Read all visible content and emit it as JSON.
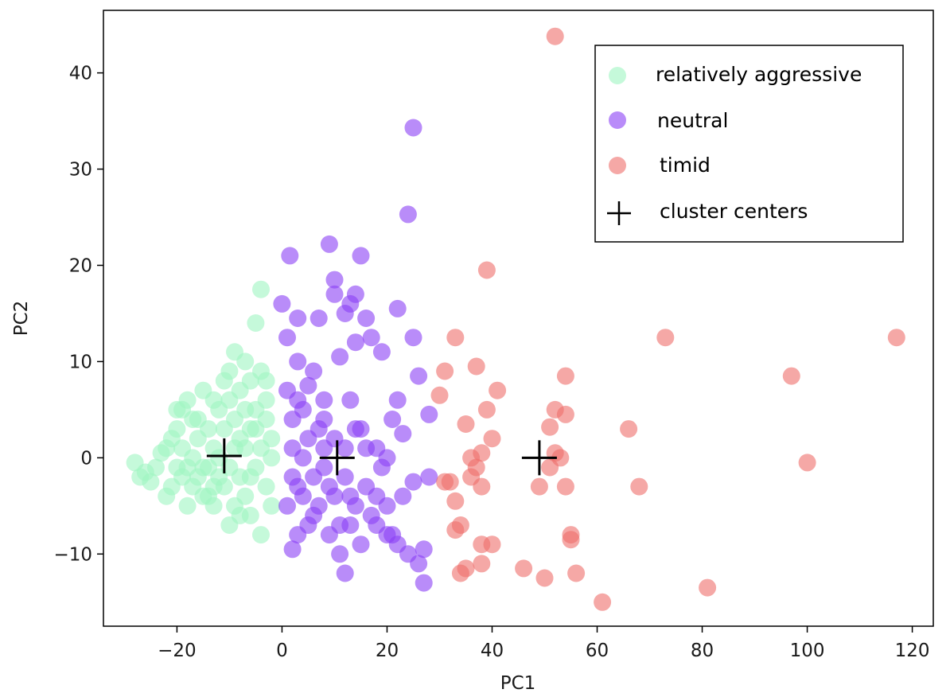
{
  "chart_data": {
    "type": "scatter",
    "title": "",
    "xlabel": "PC1",
    "ylabel": "PC2",
    "xlim": [
      -34,
      124
    ],
    "ylim": [
      -17.5,
      46.5
    ],
    "xticks": [
      -20,
      0,
      20,
      40,
      60,
      80,
      100,
      120
    ],
    "yticks": [
      -10,
      0,
      10,
      20,
      30,
      40
    ],
    "xtick_labels": [
      "−20",
      "0",
      "20",
      "40",
      "60",
      "80",
      "100",
      "120"
    ],
    "ytick_labels": [
      "−10",
      "0",
      "10",
      "20",
      "30",
      "40"
    ],
    "grid": false,
    "legend_position": "top-right",
    "series": [
      {
        "name": "relatively aggressive",
        "color": "#9ef5c1",
        "points": [
          [
            -28,
            -0.5
          ],
          [
            -27,
            -2
          ],
          [
            -26,
            -1.5
          ],
          [
            -25,
            -2.5
          ],
          [
            -24,
            -1
          ],
          [
            -23,
            0.5
          ],
          [
            -22,
            -4
          ],
          [
            -22,
            1
          ],
          [
            -21,
            -3
          ],
          [
            -21,
            2
          ],
          [
            -20,
            -1
          ],
          [
            -20,
            3
          ],
          [
            -19,
            5
          ],
          [
            -19,
            -2
          ],
          [
            -18,
            -5
          ],
          [
            -18,
            6
          ],
          [
            -17,
            0
          ],
          [
            -17,
            -3
          ],
          [
            -16,
            2
          ],
          [
            -16,
            4
          ],
          [
            -15,
            -1
          ],
          [
            -15,
            7
          ],
          [
            -14,
            -4
          ],
          [
            -14,
            3
          ],
          [
            -13,
            -5
          ],
          [
            -13,
            1
          ],
          [
            -12,
            5
          ],
          [
            -12,
            -2
          ],
          [
            -11,
            8
          ],
          [
            -11,
            -3
          ],
          [
            -10,
            9
          ],
          [
            -10,
            -7
          ],
          [
            -9,
            4
          ],
          [
            -9,
            -5
          ],
          [
            -9,
            11
          ],
          [
            -8,
            2
          ],
          [
            -8,
            -2
          ],
          [
            -8,
            7
          ],
          [
            -7,
            10
          ],
          [
            -7,
            -4
          ],
          [
            -6,
            3
          ],
          [
            -6,
            -6
          ],
          [
            -6,
            8
          ],
          [
            -5,
            5
          ],
          [
            -5,
            -1
          ],
          [
            -5,
            14
          ],
          [
            -4,
            1
          ],
          [
            -4,
            -8
          ],
          [
            -4,
            9
          ],
          [
            -4,
            17.5
          ],
          [
            -3,
            4
          ],
          [
            -3,
            -3
          ],
          [
            -3,
            6
          ],
          [
            -2,
            2
          ],
          [
            -2,
            -5
          ],
          [
            -2,
            0
          ],
          [
            -10,
            6
          ],
          [
            -12,
            0
          ],
          [
            -14,
            -1
          ],
          [
            -15,
            -4
          ],
          [
            -7,
            1
          ],
          [
            -8,
            -6
          ],
          [
            -11,
            3
          ],
          [
            -13,
            6
          ],
          [
            -17,
            4
          ],
          [
            -19,
            1
          ],
          [
            -20,
            5
          ],
          [
            -9,
            1
          ],
          [
            -6,
            -2
          ],
          [
            -5,
            3
          ],
          [
            -10,
            -1
          ],
          [
            -13,
            -3
          ],
          [
            -16,
            -2
          ],
          [
            -7,
            5
          ],
          [
            -3,
            8
          ],
          [
            -18,
            -1
          ]
        ]
      },
      {
        "name": "neutral",
        "color": "#8a40f5",
        "points": [
          [
            0,
            16
          ],
          [
            1,
            12.5
          ],
          [
            1,
            7
          ],
          [
            1.5,
            21
          ],
          [
            2,
            -9.5
          ],
          [
            2,
            4
          ],
          [
            3,
            -8
          ],
          [
            3,
            10
          ],
          [
            3,
            14.5
          ],
          [
            3,
            -3
          ],
          [
            4,
            0
          ],
          [
            4,
            5
          ],
          [
            5,
            -7
          ],
          [
            5,
            2
          ],
          [
            5,
            7.5
          ],
          [
            6,
            -2
          ],
          [
            6,
            9
          ],
          [
            7,
            -5
          ],
          [
            7,
            3
          ],
          [
            7,
            14.5
          ],
          [
            8,
            -1
          ],
          [
            8,
            1
          ],
          [
            8,
            6
          ],
          [
            9,
            22.2
          ],
          [
            9,
            -3
          ],
          [
            9,
            -8
          ],
          [
            10,
            2
          ],
          [
            10,
            17
          ],
          [
            10,
            18.5
          ],
          [
            11,
            -7
          ],
          [
            11,
            -10
          ],
          [
            11,
            10.5
          ],
          [
            12,
            1
          ],
          [
            12,
            15
          ],
          [
            12,
            -12
          ],
          [
            13,
            -4
          ],
          [
            13,
            16
          ],
          [
            13,
            6
          ],
          [
            14,
            17
          ],
          [
            14,
            12
          ],
          [
            14,
            -5
          ],
          [
            15,
            -9
          ],
          [
            15,
            21
          ],
          [
            15,
            3
          ],
          [
            16,
            14.5
          ],
          [
            16,
            -3
          ],
          [
            17,
            12.5
          ],
          [
            17,
            -6
          ],
          [
            18,
            -7
          ],
          [
            18,
            1
          ],
          [
            19,
            -1
          ],
          [
            19,
            11
          ],
          [
            20,
            -5
          ],
          [
            20,
            0
          ],
          [
            21,
            -8
          ],
          [
            21,
            4
          ],
          [
            22,
            15.5
          ],
          [
            22,
            -9
          ],
          [
            23,
            2.5
          ],
          [
            23,
            -4
          ],
          [
            24,
            -10
          ],
          [
            24,
            25.3
          ],
          [
            25,
            34.3
          ],
          [
            25,
            12.5
          ],
          [
            25,
            -2.5
          ],
          [
            26,
            8.5
          ],
          [
            26,
            -11
          ],
          [
            27,
            -13
          ],
          [
            27,
            -9.5
          ],
          [
            28,
            4.5
          ],
          [
            28,
            -2
          ],
          [
            1,
            -5
          ],
          [
            2,
            -2
          ],
          [
            4,
            -4
          ],
          [
            6,
            -6
          ],
          [
            8,
            4
          ],
          [
            10,
            -4
          ],
          [
            12,
            -2
          ],
          [
            13,
            -7
          ],
          [
            14,
            3
          ],
          [
            16,
            1
          ],
          [
            18,
            -4
          ],
          [
            20,
            -8
          ],
          [
            22,
            6
          ],
          [
            2,
            1
          ],
          [
            3,
            6
          ]
        ]
      },
      {
        "name": "timid",
        "color": "#ef6e6a",
        "points": [
          [
            30,
            6.5
          ],
          [
            31,
            9
          ],
          [
            31,
            -2.5
          ],
          [
            32,
            -2.5
          ],
          [
            33,
            -4.5
          ],
          [
            33,
            -7.5
          ],
          [
            33,
            12.5
          ],
          [
            34,
            -12
          ],
          [
            34,
            -7
          ],
          [
            35,
            3.5
          ],
          [
            35,
            -11.5
          ],
          [
            36,
            0
          ],
          [
            36,
            -2
          ],
          [
            37,
            9.5
          ],
          [
            37,
            -1
          ],
          [
            38,
            -3
          ],
          [
            38,
            0.5
          ],
          [
            38,
            -9
          ],
          [
            38,
            -11
          ],
          [
            39,
            19.5
          ],
          [
            39,
            5
          ],
          [
            40,
            2
          ],
          [
            40,
            -9
          ],
          [
            41,
            7
          ],
          [
            46,
            -11.5
          ],
          [
            49,
            -3
          ],
          [
            50,
            -12.5
          ],
          [
            51,
            3.2
          ],
          [
            51,
            -1
          ],
          [
            52,
            5
          ],
          [
            52,
            0.5
          ],
          [
            53,
            0
          ],
          [
            54,
            8.5
          ],
          [
            54,
            4.5
          ],
          [
            54,
            -3
          ],
          [
            55,
            -8.5
          ],
          [
            55,
            -8
          ],
          [
            56,
            -12
          ],
          [
            61,
            -15
          ],
          [
            66,
            3
          ],
          [
            68,
            -3
          ],
          [
            73,
            12.5
          ],
          [
            81,
            -13.5
          ],
          [
            97,
            8.5
          ],
          [
            100,
            -0.5
          ],
          [
            117,
            12.5
          ],
          [
            52,
            43.8
          ]
        ]
      }
    ],
    "centers": {
      "name": "cluster centers",
      "color": "#000000",
      "points": [
        [
          -11,
          0.2
        ],
        [
          10.5,
          0
        ],
        [
          49,
          0
        ]
      ]
    }
  }
}
